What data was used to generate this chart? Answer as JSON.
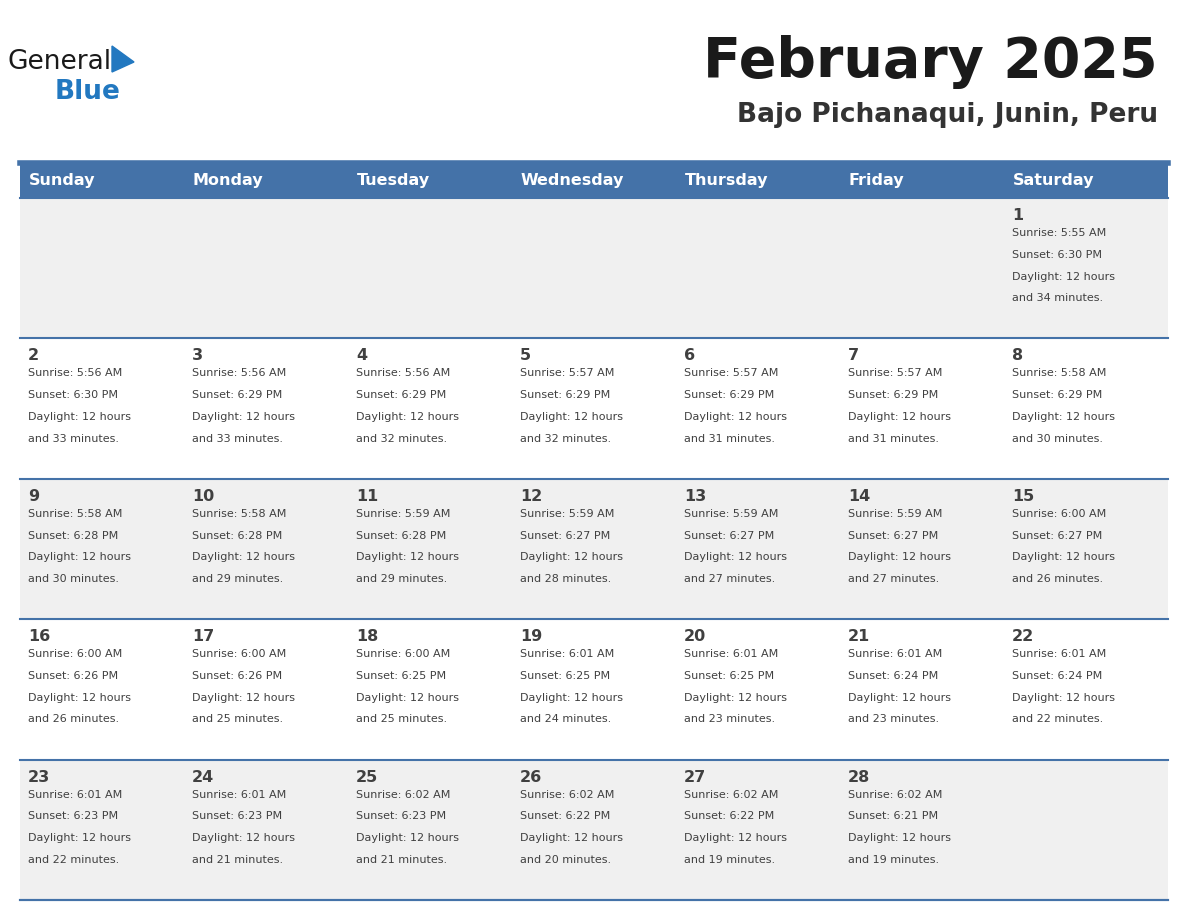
{
  "title": "February 2025",
  "subtitle": "Bajo Pichanaqui, Junin, Peru",
  "header_color": "#4472a8",
  "header_text_color": "#ffffff",
  "day_names": [
    "Sunday",
    "Monday",
    "Tuesday",
    "Wednesday",
    "Thursday",
    "Friday",
    "Saturday"
  ],
  "bg_color": "#ffffff",
  "cell_bg_row0": "#f0f0f0",
  "cell_bg_even": "#ffffff",
  "cell_bg_odd": "#f0f0f0",
  "cell_text_color": "#404040",
  "day_num_color": "#404040",
  "title_color": "#1a1a1a",
  "subtitle_color": "#333333",
  "border_color": "#4472a8",
  "row_divider_color": "#4472a8",
  "days": [
    {
      "day": 1,
      "col": 6,
      "row": 0,
      "sunrise": "5:55 AM",
      "sunset": "6:30 PM",
      "daylight": "12 hours and 34 minutes"
    },
    {
      "day": 2,
      "col": 0,
      "row": 1,
      "sunrise": "5:56 AM",
      "sunset": "6:30 PM",
      "daylight": "12 hours and 33 minutes"
    },
    {
      "day": 3,
      "col": 1,
      "row": 1,
      "sunrise": "5:56 AM",
      "sunset": "6:29 PM",
      "daylight": "12 hours and 33 minutes"
    },
    {
      "day": 4,
      "col": 2,
      "row": 1,
      "sunrise": "5:56 AM",
      "sunset": "6:29 PM",
      "daylight": "12 hours and 32 minutes"
    },
    {
      "day": 5,
      "col": 3,
      "row": 1,
      "sunrise": "5:57 AM",
      "sunset": "6:29 PM",
      "daylight": "12 hours and 32 minutes"
    },
    {
      "day": 6,
      "col": 4,
      "row": 1,
      "sunrise": "5:57 AM",
      "sunset": "6:29 PM",
      "daylight": "12 hours and 31 minutes"
    },
    {
      "day": 7,
      "col": 5,
      "row": 1,
      "sunrise": "5:57 AM",
      "sunset": "6:29 PM",
      "daylight": "12 hours and 31 minutes"
    },
    {
      "day": 8,
      "col": 6,
      "row": 1,
      "sunrise": "5:58 AM",
      "sunset": "6:29 PM",
      "daylight": "12 hours and 30 minutes"
    },
    {
      "day": 9,
      "col": 0,
      "row": 2,
      "sunrise": "5:58 AM",
      "sunset": "6:28 PM",
      "daylight": "12 hours and 30 minutes"
    },
    {
      "day": 10,
      "col": 1,
      "row": 2,
      "sunrise": "5:58 AM",
      "sunset": "6:28 PM",
      "daylight": "12 hours and 29 minutes"
    },
    {
      "day": 11,
      "col": 2,
      "row": 2,
      "sunrise": "5:59 AM",
      "sunset": "6:28 PM",
      "daylight": "12 hours and 29 minutes"
    },
    {
      "day": 12,
      "col": 3,
      "row": 2,
      "sunrise": "5:59 AM",
      "sunset": "6:27 PM",
      "daylight": "12 hours and 28 minutes"
    },
    {
      "day": 13,
      "col": 4,
      "row": 2,
      "sunrise": "5:59 AM",
      "sunset": "6:27 PM",
      "daylight": "12 hours and 27 minutes"
    },
    {
      "day": 14,
      "col": 5,
      "row": 2,
      "sunrise": "5:59 AM",
      "sunset": "6:27 PM",
      "daylight": "12 hours and 27 minutes"
    },
    {
      "day": 15,
      "col": 6,
      "row": 2,
      "sunrise": "6:00 AM",
      "sunset": "6:27 PM",
      "daylight": "12 hours and 26 minutes"
    },
    {
      "day": 16,
      "col": 0,
      "row": 3,
      "sunrise": "6:00 AM",
      "sunset": "6:26 PM",
      "daylight": "12 hours and 26 minutes"
    },
    {
      "day": 17,
      "col": 1,
      "row": 3,
      "sunrise": "6:00 AM",
      "sunset": "6:26 PM",
      "daylight": "12 hours and 25 minutes"
    },
    {
      "day": 18,
      "col": 2,
      "row": 3,
      "sunrise": "6:00 AM",
      "sunset": "6:25 PM",
      "daylight": "12 hours and 25 minutes"
    },
    {
      "day": 19,
      "col": 3,
      "row": 3,
      "sunrise": "6:01 AM",
      "sunset": "6:25 PM",
      "daylight": "12 hours and 24 minutes"
    },
    {
      "day": 20,
      "col": 4,
      "row": 3,
      "sunrise": "6:01 AM",
      "sunset": "6:25 PM",
      "daylight": "12 hours and 23 minutes"
    },
    {
      "day": 21,
      "col": 5,
      "row": 3,
      "sunrise": "6:01 AM",
      "sunset": "6:24 PM",
      "daylight": "12 hours and 23 minutes"
    },
    {
      "day": 22,
      "col": 6,
      "row": 3,
      "sunrise": "6:01 AM",
      "sunset": "6:24 PM",
      "daylight": "12 hours and 22 minutes"
    },
    {
      "day": 23,
      "col": 0,
      "row": 4,
      "sunrise": "6:01 AM",
      "sunset": "6:23 PM",
      "daylight": "12 hours and 22 minutes"
    },
    {
      "day": 24,
      "col": 1,
      "row": 4,
      "sunrise": "6:01 AM",
      "sunset": "6:23 PM",
      "daylight": "12 hours and 21 minutes"
    },
    {
      "day": 25,
      "col": 2,
      "row": 4,
      "sunrise": "6:02 AM",
      "sunset": "6:23 PM",
      "daylight": "12 hours and 21 minutes"
    },
    {
      "day": 26,
      "col": 3,
      "row": 4,
      "sunrise": "6:02 AM",
      "sunset": "6:22 PM",
      "daylight": "12 hours and 20 minutes"
    },
    {
      "day": 27,
      "col": 4,
      "row": 4,
      "sunrise": "6:02 AM",
      "sunset": "6:22 PM",
      "daylight": "12 hours and 19 minutes"
    },
    {
      "day": 28,
      "col": 5,
      "row": 4,
      "sunrise": "6:02 AM",
      "sunset": "6:21 PM",
      "daylight": "12 hours and 19 minutes"
    }
  ],
  "num_rows": 5,
  "num_cols": 7,
  "logo_general_color": "#1a1a1a",
  "logo_blue_color": "#2278c0",
  "logo_triangle_color": "#2278c0"
}
